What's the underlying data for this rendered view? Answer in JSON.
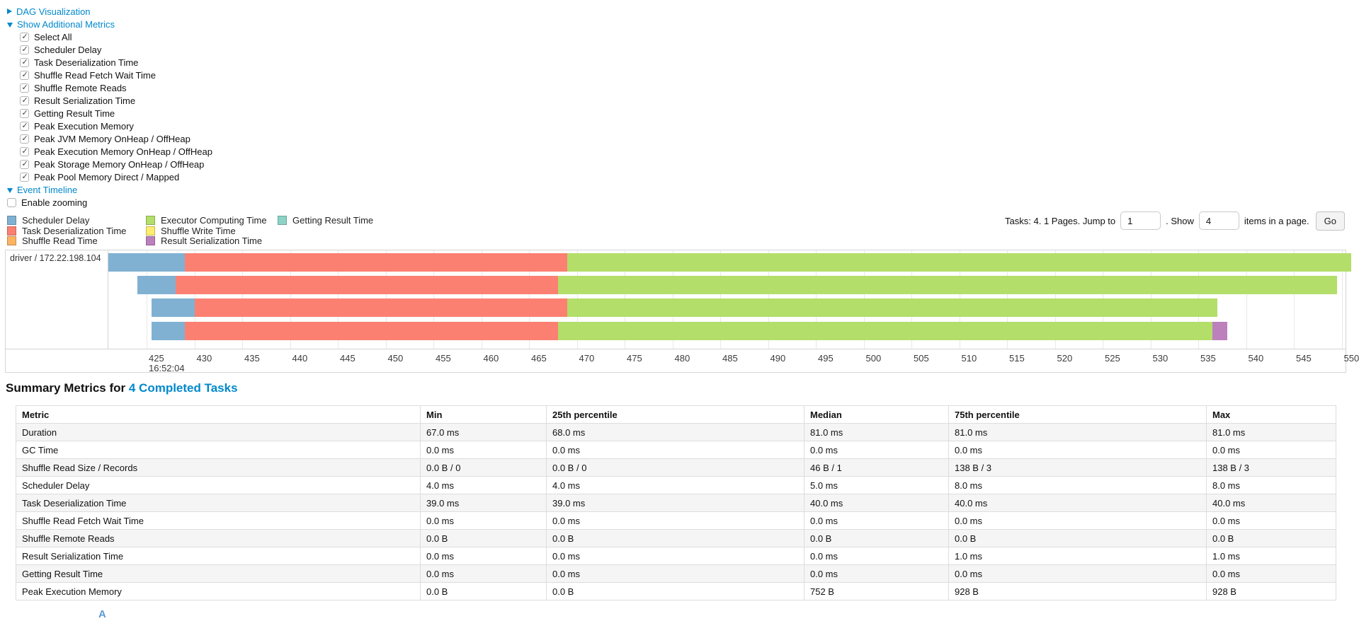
{
  "sections": {
    "dag": {
      "label": "DAG Visualization",
      "state": "collapsed"
    },
    "additional_metrics": {
      "label": "Show Additional Metrics",
      "state": "expanded",
      "checkboxes": [
        {
          "label": "Select All",
          "checked": true
        },
        {
          "label": "Scheduler Delay",
          "checked": true
        },
        {
          "label": "Task Deserialization Time",
          "checked": true
        },
        {
          "label": "Shuffle Read Fetch Wait Time",
          "checked": true
        },
        {
          "label": "Shuffle Remote Reads",
          "checked": true
        },
        {
          "label": "Result Serialization Time",
          "checked": true
        },
        {
          "label": "Getting Result Time",
          "checked": true
        },
        {
          "label": "Peak Execution Memory",
          "checked": true
        },
        {
          "label": "Peak JVM Memory OnHeap / OffHeap",
          "checked": true
        },
        {
          "label": "Peak Execution Memory OnHeap / OffHeap",
          "checked": true
        },
        {
          "label": "Peak Storage Memory OnHeap / OffHeap",
          "checked": true
        },
        {
          "label": "Peak Pool Memory Direct / Mapped",
          "checked": true
        }
      ]
    },
    "event_timeline": {
      "label": "Event Timeline",
      "state": "expanded"
    },
    "enable_zooming": {
      "label": "Enable zooming",
      "checked": false
    }
  },
  "legend": {
    "column_counts": [
      3,
      3,
      1
    ],
    "items": [
      {
        "label": "Scheduler Delay",
        "color": "#80B1D3"
      },
      {
        "label": "Task Deserialization Time",
        "color": "#FB8072"
      },
      {
        "label": "Shuffle Read Time",
        "color": "#FDB462"
      },
      {
        "label": "Executor Computing Time",
        "color": "#B3DE69"
      },
      {
        "label": "Shuffle Write Time",
        "color": "#FFED6F"
      },
      {
        "label": "Result Serialization Time",
        "color": "#BC80BD"
      },
      {
        "label": "Getting Result Time",
        "color": "#8DD3C7"
      }
    ]
  },
  "pagination": {
    "prefix": "Tasks: 4. 1 Pages. Jump to",
    "jump_value": "1",
    "mid": ". Show",
    "show_value": "4",
    "suffix": "items in a page.",
    "go": "Go"
  },
  "chart_data": {
    "type": "timeline",
    "group_label": "driver / 172.22.198.104",
    "x_axis": {
      "tick_labels": [
        425,
        430,
        435,
        440,
        445,
        450,
        455,
        460,
        465,
        470,
        475,
        480,
        485,
        490,
        495,
        500,
        505,
        510,
        515,
        520,
        525,
        530,
        535,
        540,
        545,
        550
      ],
      "first_tick_time": "16:52:04"
    },
    "series_colors": {
      "scheduler_delay": "#80B1D3",
      "task_deserialization": "#FB8072",
      "shuffle_read": "#FDB462",
      "executor_computing": "#B3DE69",
      "shuffle_write": "#FFED6F",
      "result_serialization": "#BC80BD",
      "getting_result": "#8DD3C7"
    },
    "tasks": [
      {
        "segments": [
          [
            "scheduler_delay",
            421,
            429
          ],
          [
            "task_deserialization",
            429,
            469
          ],
          [
            "executor_computing",
            469,
            551
          ]
        ]
      },
      {
        "segments": [
          [
            "scheduler_delay",
            424,
            428
          ],
          [
            "task_deserialization",
            428,
            468
          ],
          [
            "executor_computing",
            468,
            549.5
          ]
        ]
      },
      {
        "segments": [
          [
            "scheduler_delay",
            425.5,
            430
          ],
          [
            "task_deserialization",
            430,
            469
          ],
          [
            "executor_computing",
            469,
            537
          ]
        ]
      },
      {
        "segments": [
          [
            "scheduler_delay",
            425.5,
            429
          ],
          [
            "task_deserialization",
            429,
            468
          ],
          [
            "executor_computing",
            468,
            536.5
          ],
          [
            "result_serialization",
            536.5,
            538
          ]
        ]
      }
    ]
  },
  "summary": {
    "title": "Summary Metrics for",
    "link": "4 Completed Tasks",
    "columns": [
      "Metric",
      "Min",
      "25th percentile",
      "Median",
      "75th percentile",
      "Max"
    ],
    "rows": [
      [
        "Duration",
        "67.0 ms",
        "68.0 ms",
        "81.0 ms",
        "81.0 ms",
        "81.0 ms"
      ],
      [
        "GC Time",
        "0.0 ms",
        "0.0 ms",
        "0.0 ms",
        "0.0 ms",
        "0.0 ms"
      ],
      [
        "Shuffle Read Size / Records",
        "0.0 B / 0",
        "0.0 B / 0",
        "46 B / 1",
        "138 B / 3",
        "138 B / 3"
      ],
      [
        "Scheduler Delay",
        "4.0 ms",
        "4.0 ms",
        "5.0 ms",
        "8.0 ms",
        "8.0 ms"
      ],
      [
        "Task Deserialization Time",
        "39.0 ms",
        "39.0 ms",
        "40.0 ms",
        "40.0 ms",
        "40.0 ms"
      ],
      [
        "Shuffle Read Fetch Wait Time",
        "0.0 ms",
        "0.0 ms",
        "0.0 ms",
        "0.0 ms",
        "0.0 ms"
      ],
      [
        "Shuffle Remote Reads",
        "0.0 B",
        "0.0 B",
        "0.0 B",
        "0.0 B",
        "0.0 B"
      ],
      [
        "Result Serialization Time",
        "0.0 ms",
        "0.0 ms",
        "0.0 ms",
        "1.0 ms",
        "1.0 ms"
      ],
      [
        "Getting Result Time",
        "0.0 ms",
        "0.0 ms",
        "0.0 ms",
        "0.0 ms",
        "0.0 ms"
      ],
      [
        "Peak Execution Memory",
        "0.0 B",
        "0.0 B",
        "752 B",
        "928 B",
        "928 B"
      ]
    ]
  }
}
